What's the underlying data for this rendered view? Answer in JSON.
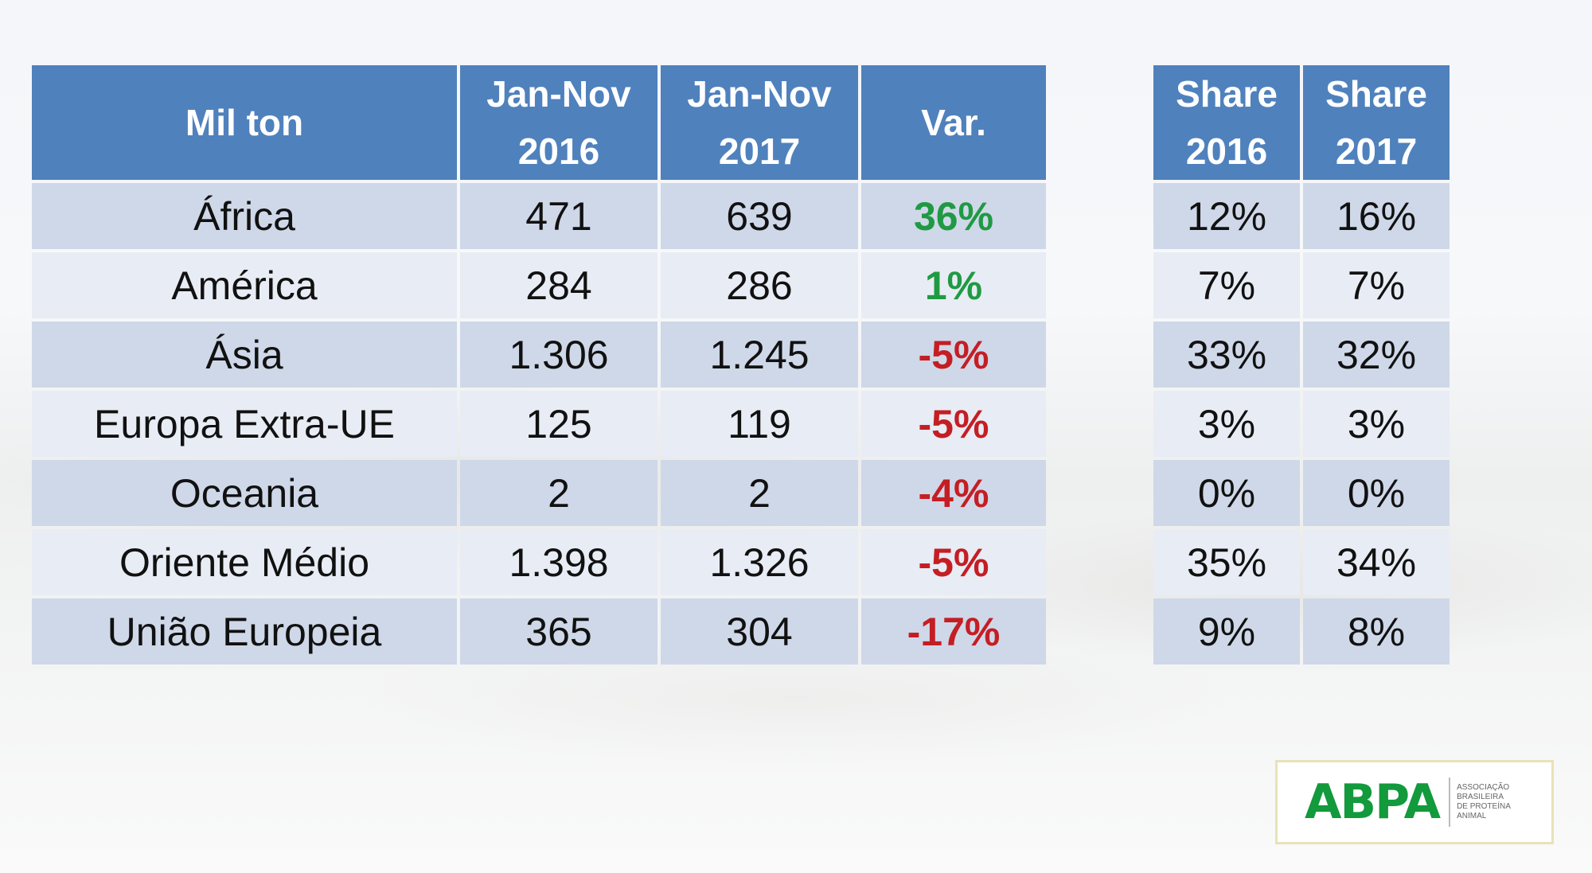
{
  "main_table": {
    "headers": [
      [
        "Mil ton"
      ],
      [
        "Jan-Nov",
        "2016"
      ],
      [
        "Jan-Nov",
        "2017"
      ],
      [
        "Var."
      ]
    ],
    "rows": [
      {
        "region": "África",
        "v2016": "471",
        "v2017": "639",
        "var": "36%",
        "var_sign": "pos"
      },
      {
        "region": "América",
        "v2016": "284",
        "v2017": "286",
        "var": "1%",
        "var_sign": "pos"
      },
      {
        "region": "Ásia",
        "v2016": "1.306",
        "v2017": "1.245",
        "var": "-5%",
        "var_sign": "neg"
      },
      {
        "region": "Europa Extra-UE",
        "v2016": "125",
        "v2017": "119",
        "var": "-5%",
        "var_sign": "neg"
      },
      {
        "region": "Oceania",
        "v2016": "2",
        "v2017": "2",
        "var": "-4%",
        "var_sign": "neg"
      },
      {
        "region": "Oriente Médio",
        "v2016": "1.398",
        "v2017": "1.326",
        "var": "-5%",
        "var_sign": "neg"
      },
      {
        "region": "União Europeia",
        "v2016": "365",
        "v2017": "304",
        "var": "-17%",
        "var_sign": "neg"
      }
    ]
  },
  "share_table": {
    "headers": [
      [
        "Share",
        "2016"
      ],
      [
        "Share",
        "2017"
      ]
    ],
    "rows": [
      {
        "s2016": "12%",
        "s2017": "16%"
      },
      {
        "s2016": "7%",
        "s2017": "7%"
      },
      {
        "s2016": "33%",
        "s2017": "32%"
      },
      {
        "s2016": "3%",
        "s2017": "3%"
      },
      {
        "s2016": "0%",
        "s2017": "0%"
      },
      {
        "s2016": "35%",
        "s2017": "34%"
      },
      {
        "s2016": "9%",
        "s2017": "8%"
      }
    ]
  },
  "logo": {
    "mark": "ABPA",
    "subtitle": [
      "ASSOCIAÇÃO",
      "BRASILEIRA",
      "DE PROTEÍNA",
      "ANIMAL"
    ]
  },
  "colors": {
    "header_blue": "#4f81bd",
    "row_dark": "#cfd8e8",
    "row_light": "#e8ecf4",
    "positive": "#1f9a43",
    "negative": "#c41e24",
    "logo_green": "#129a3c"
  }
}
